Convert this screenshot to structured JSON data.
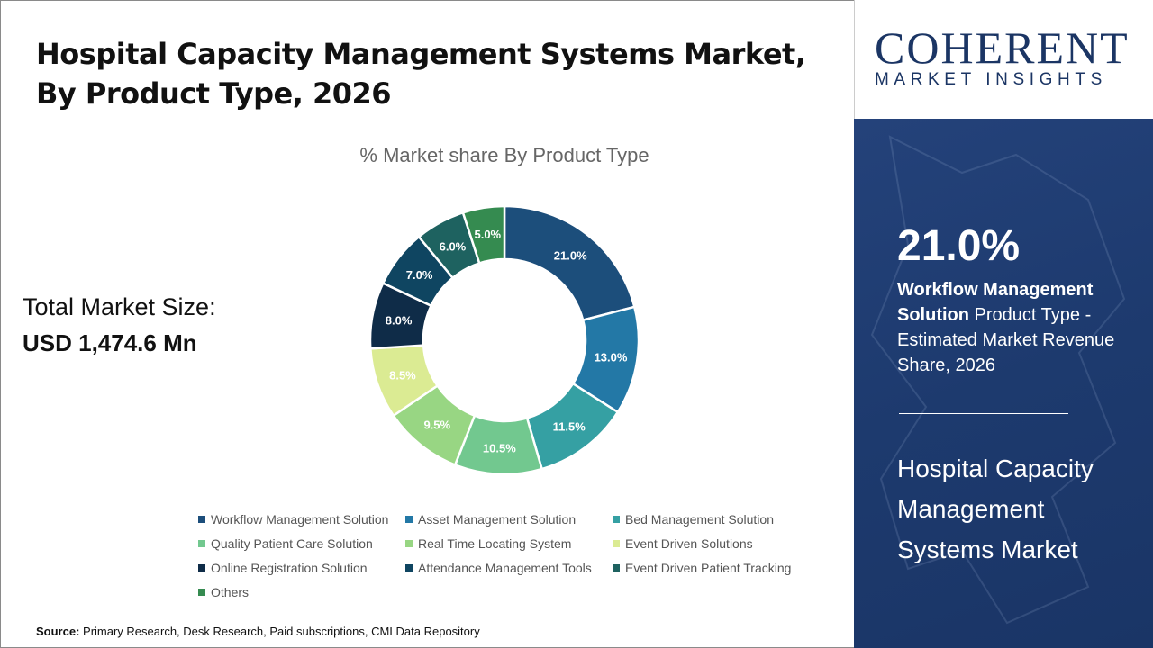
{
  "header": {
    "title": "Hospital Capacity Management Systems Market, By Product Type, 2026"
  },
  "total": {
    "label": "Total Market Size:",
    "value": "USD 1,474.6 Mn"
  },
  "logo": {
    "main": "COHERENT",
    "sub": "MARKET INSIGHTS"
  },
  "panel": {
    "percent": "21.0%",
    "highlight": "Workflow Management Solution",
    "desc": " Product Type - Estimated Market Revenue Share, 2026",
    "market": "Hospital Capacity Management Systems Market"
  },
  "source": {
    "label": "Source:",
    "text": " Primary Research, Desk Research, Paid subscriptions, CMI Data Repository"
  },
  "chart_data": {
    "type": "donut",
    "title": "% Market share By Product Type",
    "legend_position": "bottom",
    "categories": [
      "Workflow Management Solution",
      "Asset Management Solution",
      "Bed Management Solution",
      "Quality Patient Care Solution",
      "Real Time Locating System",
      "Event Driven Solutions",
      "Online Registration Solution",
      "Attendance Management Tools",
      "Event Driven Patient Tracking",
      "Others"
    ],
    "values": [
      21.0,
      13.0,
      11.5,
      10.5,
      9.5,
      8.5,
      8.0,
      7.0,
      6.0,
      5.0
    ],
    "labels": [
      "21.0%",
      "13.0%",
      "11.5%",
      "10.5%",
      "9.5%",
      "8.5%",
      "8.0%",
      "7.0%",
      "6.0%",
      "5.0%"
    ],
    "colors": [
      "#1c4e7b",
      "#2378a6",
      "#35a0a3",
      "#72c88f",
      "#98d683",
      "#dbeb93",
      "#0f2c48",
      "#0f4561",
      "#1e6260",
      "#358b50"
    ]
  }
}
